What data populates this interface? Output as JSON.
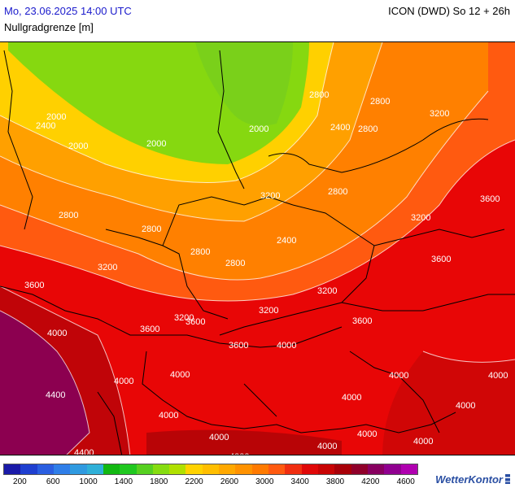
{
  "header": {
    "datetime": "Mo, 23.06.2025 14:00 UTC",
    "model_run": "ICON (DWD) So 12 + 26h",
    "parameter": "Nullgradgrenze [m]"
  },
  "legend": {
    "colors": [
      "#1a1aa8",
      "#1f3fd0",
      "#2a5ee0",
      "#2f7ee8",
      "#2f9ae0",
      "#2fb0d8",
      "#12b812",
      "#20c820",
      "#56d020",
      "#86dc10",
      "#b0e000",
      "#ffd200",
      "#ffbe00",
      "#ffa800",
      "#ff9200",
      "#ff7a00",
      "#ff5a10",
      "#f02e10",
      "#e00808",
      "#c80404",
      "#a80008",
      "#90002a",
      "#880060",
      "#900090",
      "#b000b0"
    ],
    "tick_labels": [
      "200",
      "600",
      "1000",
      "1400",
      "1800",
      "2200",
      "2600",
      "3000",
      "3400",
      "3800",
      "4200",
      "4600"
    ],
    "tick_fractions": [
      0.04,
      0.12,
      0.205,
      0.29,
      0.375,
      0.46,
      0.545,
      0.63,
      0.715,
      0.8,
      0.885,
      0.97
    ]
  },
  "map": {
    "contour_labels": [
      "2400",
      "2000",
      "2000",
      "2000",
      "2800",
      "3200",
      "3200",
      "2800",
      "2800",
      "2800",
      "2400",
      "3200",
      "3600",
      "3600",
      "3200",
      "3200",
      "4000",
      "3600",
      "3600",
      "3200",
      "3600",
      "3600",
      "4000",
      "4000",
      "4400",
      "4000",
      "4000",
      "4000",
      "4000",
      "4000",
      "4000",
      "4000",
      "4400",
      "4400",
      "4000",
      "4000",
      "2800",
      "2400",
      "3200",
      "2800",
      "2000",
      "2800",
      "3600",
      "2800",
      "4000",
      "4000",
      "4000",
      "4000"
    ]
  },
  "brand": {
    "name_part1": "Wetter",
    "name_part2": "Kontor"
  }
}
